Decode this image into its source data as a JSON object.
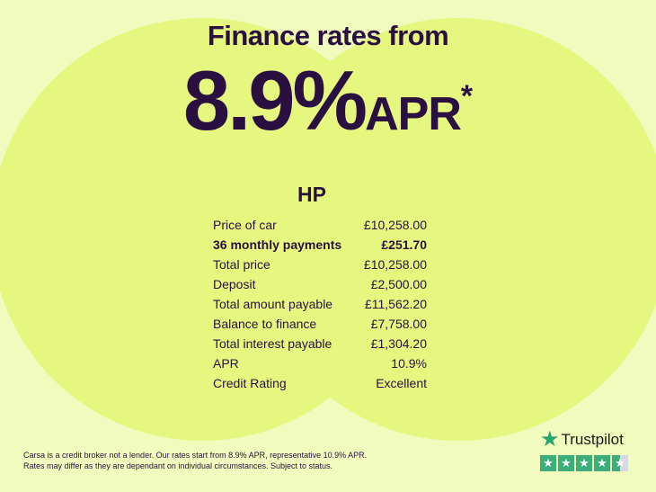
{
  "headline": {
    "title": "Finance rates from",
    "rate": "8.9%",
    "apr": "APR",
    "asterisk": "*"
  },
  "product": "HP",
  "rows": [
    {
      "label": "Price of car",
      "value": "£10,258.00",
      "bold": false
    },
    {
      "label": "36 monthly payments",
      "value": "£251.70",
      "bold": true
    },
    {
      "label": "Total price",
      "value": "£10,258.00",
      "bold": false
    },
    {
      "label": "Deposit",
      "value": "£2,500.00",
      "bold": false
    },
    {
      "label": "Total amount payable",
      "value": "£11,562.20",
      "bold": false
    },
    {
      "label": "Balance to finance",
      "value": "£7,758.00",
      "bold": false
    },
    {
      "label": "Total interest payable",
      "value": "£1,304.20",
      "bold": false
    },
    {
      "label": "APR",
      "value": "10.9%",
      "bold": false
    },
    {
      "label": "Credit Rating",
      "value": "Excellent",
      "bold": false
    }
  ],
  "disclaimer": {
    "line1": "Carsa is a credit broker not a lender. Our rates start from 8.9% APR, representative 10.9% APR.",
    "line2": "Rates may differ as they are dependant on individual circumstances. Subject to status."
  },
  "trustpilot": {
    "name": "Trustpilot",
    "rating_stars": 4.5,
    "icon": "star-icon",
    "color": "#3cae7a"
  },
  "colors": {
    "text": "#2a1040",
    "background": "#f0fbbd",
    "circle": "#e5f77f"
  }
}
